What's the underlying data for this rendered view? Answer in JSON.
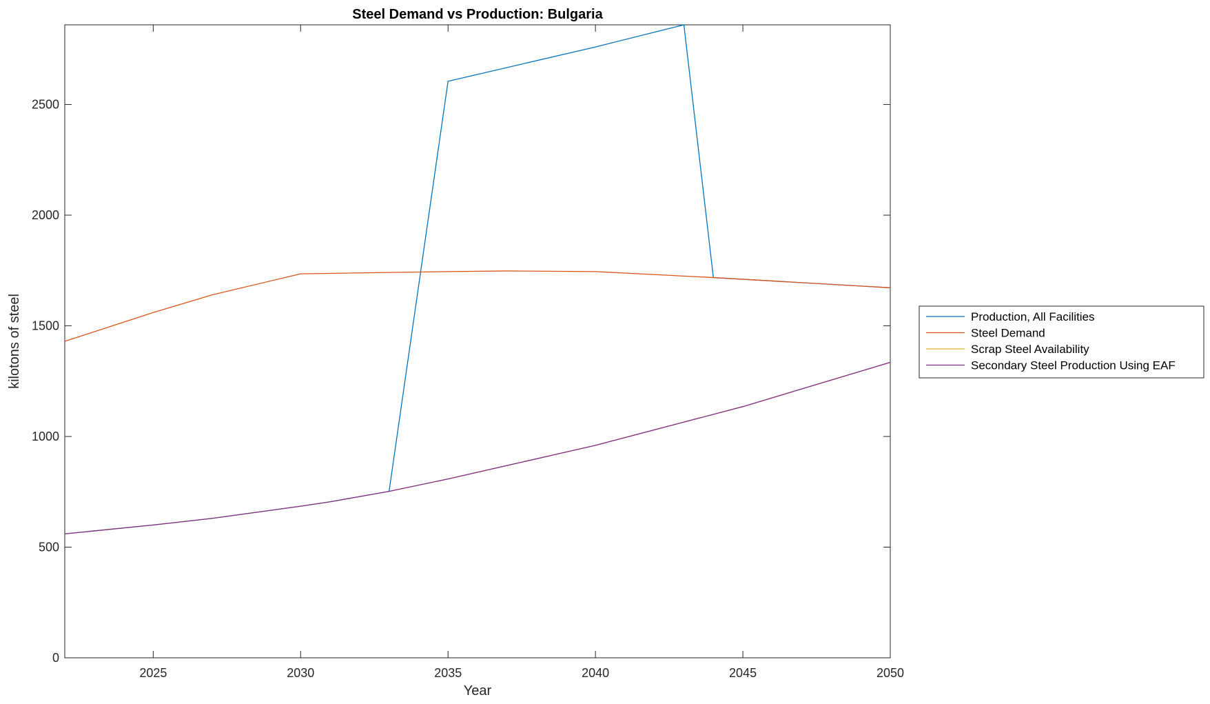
{
  "chart_data": {
    "type": "line",
    "title": "Steel Demand vs Production: Bulgaria",
    "xlabel": "Year",
    "ylabel": "kilotons of steel",
    "xlim": [
      2022,
      2050
    ],
    "ylim": [
      0,
      2860
    ],
    "xticks": [
      2025,
      2030,
      2035,
      2040,
      2045,
      2050
    ],
    "yticks": [
      0,
      500,
      1000,
      1500,
      2000,
      2500
    ],
    "grid": false,
    "legend_position": "outside-right",
    "series": [
      {
        "name": "Production, All Facilities",
        "color": "#0072BD",
        "x": [
          2022,
          2025,
          2027,
          2030,
          2031,
          2033,
          2035,
          2040,
          2043,
          2044,
          2050
        ],
        "y": [
          560,
          600,
          630,
          685,
          705,
          752,
          2605,
          2760,
          2860,
          1718,
          1672
        ]
      },
      {
        "name": "Steel Demand",
        "color": "#D95319",
        "x": [
          2022,
          2025,
          2027,
          2030,
          2035,
          2037,
          2040,
          2044,
          2050
        ],
        "y": [
          1430,
          1560,
          1640,
          1735,
          1745,
          1748,
          1745,
          1718,
          1672
        ]
      },
      {
        "name": "Scrap Steel Availability",
        "color": "#EDB120",
        "x": [
          2022,
          2025,
          2027,
          2030,
          2031,
          2033,
          2035,
          2040,
          2045,
          2050
        ],
        "y": [
          560,
          600,
          630,
          685,
          705,
          752,
          808,
          960,
          1135,
          1335
        ]
      },
      {
        "name": "Secondary Steel Production Using EAF",
        "color": "#7E2F8E",
        "x": [
          2022,
          2025,
          2027,
          2030,
          2031,
          2033,
          2035,
          2040,
          2045,
          2050
        ],
        "y": [
          560,
          600,
          630,
          685,
          705,
          752,
          808,
          960,
          1135,
          1335
        ]
      }
    ]
  }
}
